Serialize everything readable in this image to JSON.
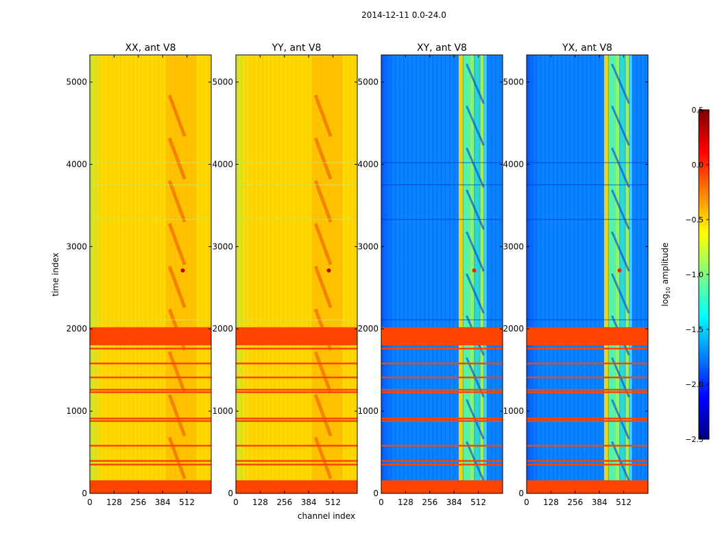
{
  "chart_data": {
    "type": "heatmap",
    "suptitle": "2014-12-11 0.0-24.0",
    "xlabel": "channel index",
    "ylabel": "time index",
    "x_ticks": [
      0,
      128,
      256,
      384,
      512
    ],
    "y_ticks": [
      0,
      1000,
      2000,
      3000,
      4000,
      5000
    ],
    "xlim": [
      0,
      640
    ],
    "ylim": [
      0,
      5330
    ],
    "panels": [
      {
        "title": "XX, ant V8",
        "level": "high"
      },
      {
        "title": "YY, ant V8",
        "level": "high"
      },
      {
        "title": "XY, ant V8",
        "level": "low"
      },
      {
        "title": "YX, ant V8",
        "level": "low"
      }
    ],
    "flagged_time_bands": [
      [
        0,
        160
      ],
      [
        1800,
        2020
      ]
    ],
    "flagged_time_lines": [
      350,
      395,
      580,
      880,
      910,
      1230,
      1260,
      1410,
      1580,
      1760
    ],
    "colorbar": {
      "label": "log10 amplitude",
      "label_prefix": "log",
      "label_subscript": "10",
      "label_suffix": " amplitude",
      "range": [
        -2.5,
        0.5
      ],
      "ticks": [
        "0.5",
        "0.0",
        "−0.5",
        "−1.0",
        "−1.5",
        "−2.0",
        "−2.5"
      ],
      "colormap": "jet"
    },
    "colors": {
      "flag_band": "#ff4400",
      "high_base": "#ffd800",
      "low_base": "#0a84ff",
      "hot": "#e83800"
    }
  }
}
